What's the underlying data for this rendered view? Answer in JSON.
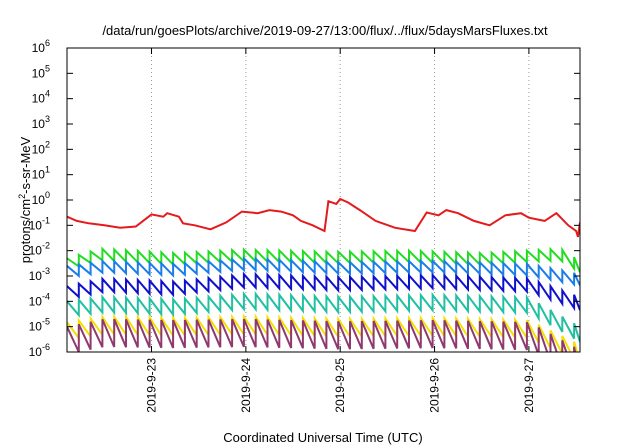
{
  "chart_data": {
    "type": "line",
    "title": "/data/run/goesPlots/archive/2019-09-27/13:00/flux/../flux/5daysMarsFluxes.txt",
    "xlabel": "Coordinated Universal Time (UTC)",
    "ylabel_main": "protons/cm",
    "ylabel_sup": "2",
    "ylabel_tail": "-s-sr-MeV",
    "y_scale": "log",
    "ylim": [
      1e-06,
      1000000.0
    ],
    "y_ticks": [
      {
        "value": 1000000.0,
        "base": "10",
        "exp": "6"
      },
      {
        "value": 100000.0,
        "base": "10",
        "exp": "5"
      },
      {
        "value": 10000.0,
        "base": "10",
        "exp": "4"
      },
      {
        "value": 1000.0,
        "base": "10",
        "exp": "3"
      },
      {
        "value": 100.0,
        "base": "10",
        "exp": "2"
      },
      {
        "value": 10.0,
        "base": "10",
        "exp": "1"
      },
      {
        "value": 1.0,
        "base": "10",
        "exp": "0"
      },
      {
        "value": 0.1,
        "base": "10",
        "exp": "-1"
      },
      {
        "value": 0.01,
        "base": "10",
        "exp": "-2"
      },
      {
        "value": 0.001,
        "base": "10",
        "exp": "-3"
      },
      {
        "value": 0.0001,
        "base": "10",
        "exp": "-4"
      },
      {
        "value": 1e-05,
        "base": "10",
        "exp": "-5"
      },
      {
        "value": 1e-06,
        "base": "10",
        "exp": "-6"
      }
    ],
    "xlim": [
      "2019-09-22T02:30",
      "2019-09-27T13:00"
    ],
    "x_ticks": [
      {
        "value": "2019-09-23T00:00",
        "label": "2019-9-23"
      },
      {
        "value": "2019-09-24T00:00",
        "label": "2019-9-24"
      },
      {
        "value": "2019-09-25T00:00",
        "label": "2019-9-25"
      },
      {
        "value": "2019-09-26T00:00",
        "label": "2019-9-26"
      },
      {
        "value": "2019-09-27T00:00",
        "label": "2019-9-27"
      }
    ],
    "grid": {
      "x": true,
      "y": false
    },
    "series": [
      {
        "color": "#e41a1c",
        "x": [
          "2019-09-22T02:30",
          "2019-09-22T05:00",
          "2019-09-22T08:00",
          "2019-09-22T12:00",
          "2019-09-22T16:00",
          "2019-09-22T20:00",
          "2019-09-23T00:00",
          "2019-09-23T03:00",
          "2019-09-23T04:00",
          "2019-09-23T07:00",
          "2019-09-23T08:00",
          "2019-09-23T11:00",
          "2019-09-23T15:00",
          "2019-09-23T19:00",
          "2019-09-23T23:00",
          "2019-09-24T03:00",
          "2019-09-24T06:00",
          "2019-09-24T09:00",
          "2019-09-24T12:00",
          "2019-09-24T14:00",
          "2019-09-24T17:00",
          "2019-09-24T20:00",
          "2019-09-24T21:00",
          "2019-09-24T23:00",
          "2019-09-25T00:00",
          "2019-09-25T02:00",
          "2019-09-25T05:00",
          "2019-09-25T09:00",
          "2019-09-25T14:00",
          "2019-09-25T19:00",
          "2019-09-25T22:00",
          "2019-09-26T01:00",
          "2019-09-26T03:00",
          "2019-09-26T06:00",
          "2019-09-26T10:00",
          "2019-09-26T14:00",
          "2019-09-26T18:00",
          "2019-09-26T22:00",
          "2019-09-27T00:00",
          "2019-09-27T04:00",
          "2019-09-27T07:00",
          "2019-09-27T10:00",
          "2019-09-27T12:00",
          "2019-09-27T12:30",
          "2019-09-27T13:00"
        ],
        "y": [
          0.22,
          0.15,
          0.12,
          0.1,
          0.08,
          0.09,
          0.27,
          0.22,
          0.3,
          0.22,
          0.12,
          0.1,
          0.07,
          0.13,
          0.35,
          0.3,
          0.4,
          0.35,
          0.25,
          0.15,
          0.1,
          0.06,
          0.9,
          0.7,
          1.1,
          0.8,
          0.4,
          0.15,
          0.08,
          0.06,
          0.32,
          0.25,
          0.4,
          0.3,
          0.15,
          0.1,
          0.25,
          0.3,
          0.2,
          0.15,
          0.3,
          0.1,
          0.06,
          0.035,
          0.13
        ]
      },
      {
        "color": "#22dd22",
        "x": [
          "2019-09-22T02:30",
          "2019-09-22T11:00",
          "2019-09-23T06:00",
          "2019-09-23T23:00",
          "2019-09-24T22:00",
          "2019-09-25T18:00",
          "2019-09-26T12:00",
          "2019-09-27T08:00",
          "2019-09-27T13:00"
        ],
        "y": [
          0.005,
          0.012,
          0.008,
          0.011,
          0.009,
          0.01,
          0.008,
          0.012,
          0.004
        ],
        "sawtooth": {
          "period_hours": 3,
          "drop_factor": 0.35
        }
      },
      {
        "color": "#1a7ee8",
        "x": [
          "2019-09-22T02:30",
          "2019-09-22T12:00",
          "2019-09-23T06:00",
          "2019-09-24T00:00",
          "2019-09-25T00:00",
          "2019-09-26T00:00",
          "2019-09-27T00:00",
          "2019-09-27T13:00"
        ],
        "y": [
          0.0025,
          0.004,
          0.003,
          0.005,
          0.0035,
          0.004,
          0.003,
          0.0012
        ],
        "sawtooth": {
          "period_hours": 3,
          "drop_factor": 0.35
        }
      },
      {
        "color": "#1010cc",
        "x": [
          "2019-09-22T02:30",
          "2019-09-22T12:00",
          "2019-09-23T06:00",
          "2019-09-24T00:00",
          "2019-09-25T00:00",
          "2019-09-26T00:00",
          "2019-09-27T00:00",
          "2019-09-27T13:00"
        ],
        "y": [
          0.0004,
          0.0008,
          0.0006,
          0.0012,
          0.0009,
          0.0011,
          0.0008,
          0.00015
        ],
        "sawtooth": {
          "period_hours": 3,
          "drop_factor": 0.3
        }
      },
      {
        "color": "#20c0a0",
        "x": [
          "2019-09-22T02:30",
          "2019-09-22T12:00",
          "2019-09-23T06:00",
          "2019-09-24T00:00",
          "2019-09-25T00:00",
          "2019-09-26T00:00",
          "2019-09-27T00:00",
          "2019-09-27T13:00"
        ],
        "y": [
          0.0001,
          0.00015,
          0.00012,
          0.0002,
          0.00015,
          0.00018,
          0.00014,
          1e-05
        ],
        "sawtooth": {
          "period_hours": 3,
          "drop_factor": 0.25
        }
      },
      {
        "color": "#f5e000",
        "x": [
          "2019-09-22T02:30",
          "2019-09-22T12:00",
          "2019-09-23T06:00",
          "2019-09-24T00:00",
          "2019-09-25T00:00",
          "2019-09-26T00:00",
          "2019-09-27T00:00",
          "2019-09-27T13:00"
        ],
        "y": [
          1.5e-05,
          2.5e-05,
          2.2e-05,
          2.5e-05,
          2e-05,
          2.2e-05,
          1.8e-05,
          2e-06
        ],
        "sawtooth": {
          "period_hours": 3,
          "drop_factor": 0.2
        }
      },
      {
        "color": "#8e3a6e",
        "x": [
          "2019-09-22T02:30",
          "2019-09-22T12:00",
          "2019-09-23T06:00",
          "2019-09-24T00:00",
          "2019-09-25T00:00",
          "2019-09-26T00:00",
          "2019-09-27T00:00",
          "2019-09-27T13:00"
        ],
        "y": [
          1e-05,
          2e-05,
          1.8e-05,
          2e-05,
          1.6e-05,
          1.8e-05,
          1.5e-05,
          1.2e-06
        ],
        "sawtooth": {
          "period_hours": 3,
          "drop_factor": 0.08
        }
      }
    ]
  }
}
